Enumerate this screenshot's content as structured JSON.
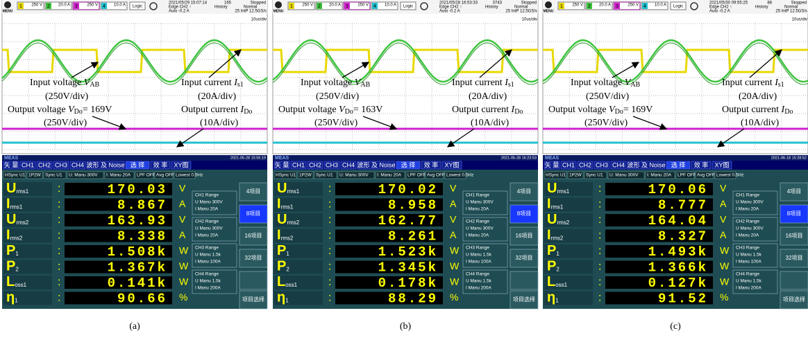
{
  "scope_common": {
    "channels": [
      {
        "n": "1",
        "scale": "250 V"
      },
      {
        "n": "2",
        "scale": "20.0 A"
      },
      {
        "n": "3",
        "scale": "250 V"
      },
      {
        "n": "4",
        "scale": "10.0 A"
      }
    ],
    "logic": "Logic",
    "menu": "MENU",
    "trigger": "Edge CH2 ↑",
    "history": "History",
    "mode": "Normal",
    "auto": "Auto -0.2 A",
    "rate": "25 IntP 12.5GS/s",
    "timebase": "10us/div"
  },
  "meter_common": {
    "title": "MEAS",
    "tabs": [
      "矢 量",
      "CH1",
      "CH2",
      "CH3",
      "CH4",
      "波形 及 Noise",
      "选 择",
      "效 率",
      "XY图"
    ],
    "settings": [
      "HSync U1",
      "1P2W",
      "Sync U1",
      "U: Manu 300V",
      "I: Manu 20A",
      "LPF OFF",
      "Avg OFF",
      "Lowest 0.5Hz"
    ],
    "rows": [
      {
        "symbol": "U",
        "sub": "rms1",
        "unit": "V"
      },
      {
        "symbol": "I",
        "sub": "rms1",
        "unit": "A"
      },
      {
        "symbol": "U",
        "sub": "rms2",
        "unit": "V"
      },
      {
        "symbol": "I",
        "sub": "rms2",
        "unit": "A"
      },
      {
        "symbol": "P",
        "sub": "1",
        "unit": "W"
      },
      {
        "symbol": "P",
        "sub": "2",
        "unit": "W"
      },
      {
        "symbol": "L",
        "sub": "oss1",
        "unit": "W"
      },
      {
        "symbol": "η",
        "sub": "1",
        "unit": "%"
      }
    ],
    "ranges": [
      {
        "ch": "CH1 Range",
        "u": "U Manu 300V",
        "i": "I Manu 20A"
      },
      {
        "ch": "CH2 Range",
        "u": "U Manu 300V",
        "i": "I Manu 20A"
      },
      {
        "ch": "CH3 Range",
        "u": "U Manu 1.5k",
        "i": "I Manu 100A"
      },
      {
        "ch": "CH4 Range",
        "u": "U Manu 1.5k",
        "i": "I Manu 200A"
      }
    ],
    "buttons": [
      "4项目",
      "8项目",
      "16项目",
      "32项目",
      "项目选择"
    ]
  },
  "panels": [
    {
      "label": "(a)",
      "scope": {
        "timestamp": "2021/05/29 15:07:14",
        "count": "165",
        "state": "Stopped",
        "annotations": [
          {
            "text": "Input voltage ",
            "var": "V",
            "sub": "AB"
          },
          {
            "text": "(250V/div)"
          },
          {
            "text": "Input current ",
            "var": "I",
            "sub": "s1"
          },
          {
            "text": "(20A/div)"
          },
          {
            "text": "Output voltage ",
            "var": "V",
            "sub": "Do",
            "after": "= 169V"
          },
          {
            "text": "(250V/div)"
          },
          {
            "text": "Output current ",
            "var": "I",
            "sub": "Do"
          },
          {
            "text": "(10A/div)"
          }
        ]
      },
      "meter": {
        "timestamp": "2021-05-28 15:56:19",
        "values": [
          "170.03",
          "8.867",
          "163.93",
          "8.338",
          "1.508k",
          "1.367k",
          "0.141k",
          "90.66"
        ]
      }
    },
    {
      "label": "(b)",
      "scope": {
        "timestamp": "2021/05/28 16:53:33",
        "count": "3743",
        "state": "Stopped",
        "annotations": [
          {
            "text": "Input voltage ",
            "var": "V",
            "sub": "AB"
          },
          {
            "text": "(250V/div)"
          },
          {
            "text": "Input current ",
            "var": "I",
            "sub": "s1"
          },
          {
            "text": "(20A/div)"
          },
          {
            "text": "Output voltage ",
            "var": "V",
            "sub": "Do",
            "after": "= 163V"
          },
          {
            "text": "(250V/div)"
          },
          {
            "text": "Output current ",
            "var": "I",
            "sub": "Do"
          },
          {
            "text": "(10A/div)"
          }
        ]
      },
      "meter": {
        "timestamp": "2021-05-28 16:23:53",
        "values": [
          "170.02",
          "8.958",
          "162.77",
          "8.261",
          "1.523k",
          "1.345k",
          "0.178k",
          "88.29"
        ]
      }
    },
    {
      "label": "(c)",
      "scope": {
        "timestamp": "2021/05/30 09:55:25",
        "count": "88",
        "state": "Stopped",
        "annotations": [
          {
            "text": "Input voltage ",
            "var": "V",
            "sub": "AB"
          },
          {
            "text": "(250V/div)"
          },
          {
            "text": "Input current ",
            "var": "I",
            "sub": "s1"
          },
          {
            "text": "(20A/div)"
          },
          {
            "text": "Output voltage ",
            "var": "V",
            "sub": "Do",
            "after": "= 169V"
          },
          {
            "text": "(250V/div)"
          },
          {
            "text": "Output current ",
            "var": "I",
            "sub": "Do"
          },
          {
            "text": "(10A/div)"
          }
        ]
      },
      "meter": {
        "timestamp": "2021-06-18 15:28:52",
        "values": [
          "170.06",
          "8.777",
          "164.04",
          "8.327",
          "1.493k",
          "1.366k",
          "0.127k",
          "91.52"
        ]
      }
    }
  ]
}
